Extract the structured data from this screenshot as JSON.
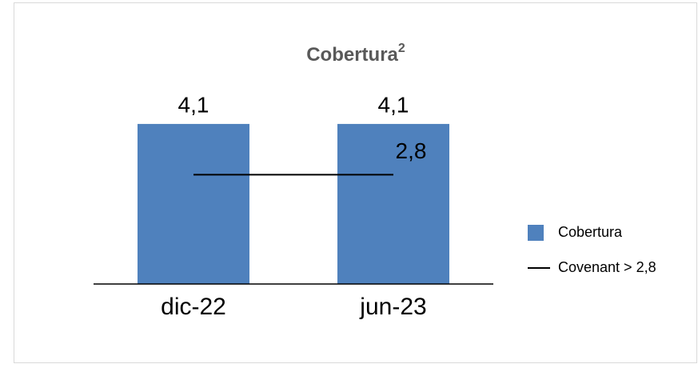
{
  "chart_data": {
    "type": "bar",
    "title": "Cobertura",
    "title_superscript": "2",
    "categories": [
      "dic-22",
      "jun-23"
    ],
    "series": [
      {
        "name": "Cobertura",
        "type": "bar",
        "color": "#4f81bd",
        "values": [
          4.1,
          4.1
        ],
        "value_labels": [
          "4,1",
          "4,1"
        ]
      },
      {
        "name": "Covenant > 2,8",
        "type": "line",
        "color": "#000000",
        "values": [
          2.8,
          2.8
        ],
        "value_labels": [
          null,
          "2,8"
        ]
      }
    ],
    "ylim": [
      0,
      5
    ],
    "legend": "right"
  }
}
